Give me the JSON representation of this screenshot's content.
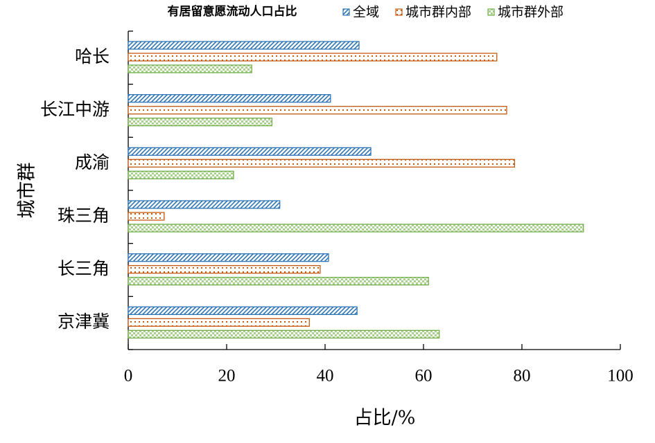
{
  "chart_data": {
    "type": "bar",
    "orientation": "horizontal",
    "title": "有居留意愿流动人口占比",
    "x_label": "占比/%",
    "y_label": "城市群",
    "categories": [
      "哈长",
      "长江中游",
      "成渝",
      "珠三角",
      "长三角",
      "京津冀"
    ],
    "series": [
      {
        "name": "全域",
        "color": "#2e75b6",
        "values": [
          46.9,
          41.1,
          49.3,
          30.8,
          40.7,
          46.5
        ]
      },
      {
        "name": "城市群内部",
        "color": "#c55a11",
        "values": [
          74.9,
          76.9,
          78.5,
          7.3,
          39.0,
          36.8
        ]
      },
      {
        "name": "城市群外部",
        "color": "#70ad47",
        "values": [
          25.1,
          29.2,
          21.4,
          92.5,
          61.0,
          63.2
        ]
      }
    ],
    "xlim": [
      0,
      100
    ],
    "xticks": [
      0,
      20,
      40,
      60,
      80,
      100
    ]
  }
}
